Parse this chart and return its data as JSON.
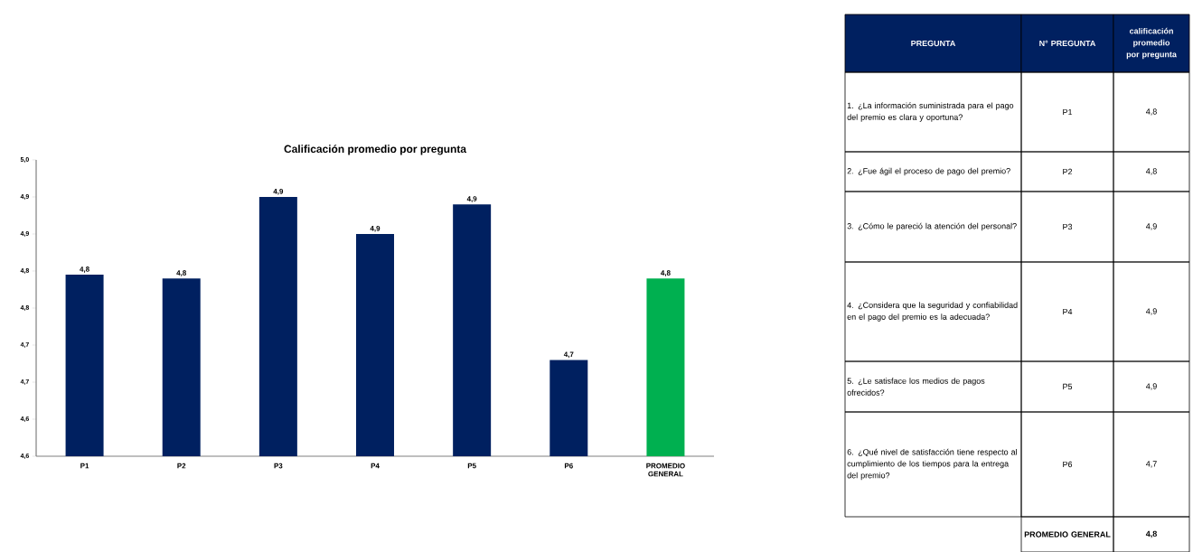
{
  "chart_data": [
    {
      "type": "bar",
      "title": "Calificación promedio por pregunta",
      "categories": [
        "P1",
        "P2",
        "P3",
        "P4",
        "P5",
        "P6",
        "PROMEDIO GENERAL"
      ],
      "values": [
        4.845,
        4.84,
        4.95,
        4.9,
        4.94,
        4.73,
        4.84
      ],
      "colors": [
        "#002060",
        "#002060",
        "#002060",
        "#002060",
        "#002060",
        "#002060",
        "#00b050"
      ],
      "value_labels": [
        "4,8",
        "4,8",
        "4,9",
        "4,9",
        "4,9",
        "4,7",
        "4,8"
      ],
      "ylim": [
        4.6,
        5.0
      ],
      "yticks": [
        {
          "value": 4.6,
          "label": "4,6"
        },
        {
          "value": 4.65,
          "label": "4,6"
        },
        {
          "value": 4.7,
          "label": "4,7"
        },
        {
          "value": 4.75,
          "label": "4,7"
        },
        {
          "value": 4.8,
          "label": "4,8"
        },
        {
          "value": 4.85,
          "label": "4,8"
        },
        {
          "value": 4.9,
          "label": "4,9"
        },
        {
          "value": 4.95,
          "label": "4,9"
        },
        {
          "value": 5.0,
          "label": "5,0"
        }
      ],
      "grid": false
    },
    {
      "type": "other",
      "annotations": [
        "PREGUNTA",
        "N°  PREGUNTA",
        "calificación promedio por pregunta",
        "1. ¿La información suministrada para el pago del premio es clara y oportuna?",
        "P1",
        "4,8",
        "2. ¿Fue ágil el proceso de pago del premio?",
        "P2",
        "4,8",
        "3. ¿Cómo le pareció la atención del personal?",
        "P3",
        "4,9",
        "4. ¿Considera que la seguridad y confiabilidad en el pago del premio es la adecuada?",
        "P4",
        "4,9",
        "5. ¿Le satisface los medios de pagos ofrecidos?",
        "P5",
        "4,9",
        "6. ¿Qué nivel de satisfacción tiene respecto al cumplimiento de los tiempos para la  entrega del premio?",
        "P6",
        "4,7",
        "PROMEDIO GENERAL",
        "4,8"
      ]
    }
  ]
}
